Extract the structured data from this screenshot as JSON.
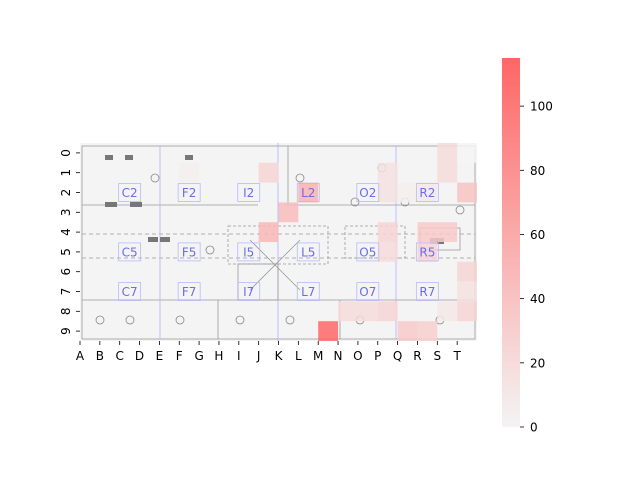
{
  "chart_data": {
    "type": "heatmap",
    "title": "",
    "xlabel": "",
    "ylabel": "",
    "x_categories": [
      "A",
      "B",
      "C",
      "D",
      "E",
      "F",
      "G",
      "H",
      "I",
      "J",
      "K",
      "L",
      "M",
      "N",
      "O",
      "P",
      "Q",
      "R",
      "S",
      "T"
    ],
    "y_categories": [
      "0",
      "1",
      "2",
      "3",
      "4",
      "5",
      "6",
      "7",
      "8",
      "9"
    ],
    "cells": [
      {
        "col": "T",
        "row": "0",
        "value": 0
      },
      {
        "col": "S",
        "row": "0",
        "value": 20
      },
      {
        "col": "F",
        "row": "1",
        "value": 5
      },
      {
        "col": "J",
        "row": "1",
        "value": 25
      },
      {
        "col": "P",
        "row": "1",
        "value": 15
      },
      {
        "col": "S",
        "row": "1",
        "value": 20
      },
      {
        "col": "L",
        "row": "2",
        "value": 55
      },
      {
        "col": "P",
        "row": "2",
        "value": 15
      },
      {
        "col": "Q",
        "row": "2",
        "value": 5
      },
      {
        "col": "R",
        "row": "2",
        "value": 10
      },
      {
        "col": "T",
        "row": "2",
        "value": 40
      },
      {
        "col": "K",
        "row": "3",
        "value": 45
      },
      {
        "col": "J",
        "row": "4",
        "value": 50
      },
      {
        "col": "P",
        "row": "4",
        "value": 25
      },
      {
        "col": "R",
        "row": "4",
        "value": 35
      },
      {
        "col": "S",
        "row": "4",
        "value": 35
      },
      {
        "col": "P",
        "row": "5",
        "value": 20
      },
      {
        "col": "R",
        "row": "5",
        "value": 25
      },
      {
        "col": "T",
        "row": "6",
        "value": 25
      },
      {
        "col": "T",
        "row": "7",
        "value": 15
      },
      {
        "col": "N",
        "row": "8",
        "value": 20
      },
      {
        "col": "O",
        "row": "8",
        "value": 20
      },
      {
        "col": "P",
        "row": "8",
        "value": 25
      },
      {
        "col": "T",
        "row": "8",
        "value": 25
      },
      {
        "col": "S",
        "row": "8",
        "value": 10
      },
      {
        "col": "M",
        "row": "9",
        "value": 115
      },
      {
        "col": "Q",
        "row": "9",
        "value": 35
      },
      {
        "col": "R",
        "row": "9",
        "value": 30
      }
    ],
    "room_labels": [
      {
        "text": "C2",
        "col": "C",
        "row": "2"
      },
      {
        "text": "F2",
        "col": "F",
        "row": "2"
      },
      {
        "text": "I2",
        "col": "I",
        "row": "2"
      },
      {
        "text": "L2",
        "col": "L",
        "row": "2"
      },
      {
        "text": "O2",
        "col": "O",
        "row": "2"
      },
      {
        "text": "R2",
        "col": "R",
        "row": "2"
      },
      {
        "text": "C5",
        "col": "C",
        "row": "5"
      },
      {
        "text": "F5",
        "col": "F",
        "row": "5"
      },
      {
        "text": "I5",
        "col": "I",
        "row": "5"
      },
      {
        "text": "L5",
        "col": "L",
        "row": "5"
      },
      {
        "text": "O5",
        "col": "O",
        "row": "5"
      },
      {
        "text": "R5",
        "col": "R",
        "row": "5"
      },
      {
        "text": "C7",
        "col": "C",
        "row": "7"
      },
      {
        "text": "F7",
        "col": "F",
        "row": "7"
      },
      {
        "text": "I7",
        "col": "I",
        "row": "7"
      },
      {
        "text": "L7",
        "col": "L",
        "row": "7"
      },
      {
        "text": "O7",
        "col": "O",
        "row": "7"
      },
      {
        "text": "R7",
        "col": "R",
        "row": "7"
      }
    ],
    "colorbar": {
      "min": 0,
      "max": 115,
      "ticks": [
        0,
        20,
        40,
        60,
        80,
        100
      ],
      "color_low": "#f4f4f4",
      "color_high": "#ff6666"
    },
    "background": "floor plan",
    "grid": false
  }
}
